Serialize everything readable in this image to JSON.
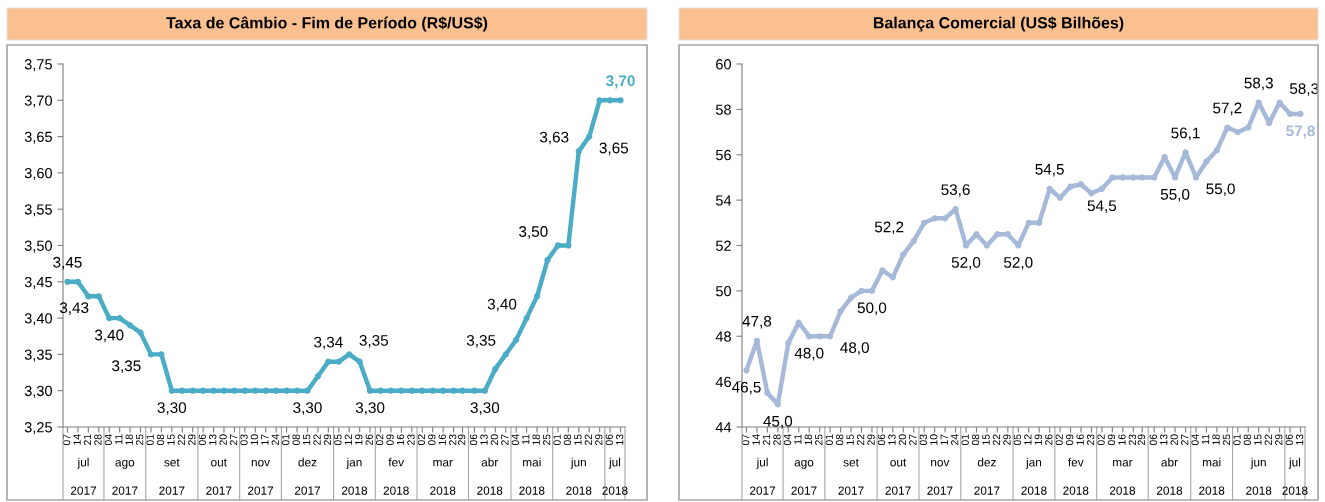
{
  "chart_data": [
    {
      "type": "line",
      "title": "Taxa de Câmbio - Fim de Período (R$/US$)",
      "x": [
        "2017-07-07",
        "2017-07-14",
        "2017-07-21",
        "2017-07-28",
        "2017-08-04",
        "2017-08-11",
        "2017-08-18",
        "2017-08-25",
        "2017-09-01",
        "2017-09-08",
        "2017-09-15",
        "2017-09-22",
        "2017-09-29",
        "2017-10-06",
        "2017-10-13",
        "2017-10-20",
        "2017-10-27",
        "2017-11-03",
        "2017-11-10",
        "2017-11-17",
        "2017-11-24",
        "2017-12-01",
        "2017-12-08",
        "2017-12-15",
        "2017-12-22",
        "2017-12-29",
        "2018-01-05",
        "2018-01-12",
        "2018-01-19",
        "2018-01-26",
        "2018-02-02",
        "2018-02-09",
        "2018-02-16",
        "2018-02-23",
        "2018-03-02",
        "2018-03-09",
        "2018-03-16",
        "2018-03-23",
        "2018-03-29",
        "2018-04-06",
        "2018-04-13",
        "2018-04-20",
        "2018-04-27",
        "2018-05-04",
        "2018-05-11",
        "2018-05-18",
        "2018-05-25",
        "2018-06-01",
        "2018-06-08",
        "2018-06-15",
        "2018-06-22",
        "2018-06-29",
        "2018-07-06",
        "2018-07-13"
      ],
      "xlim": [
        "2017-07-04",
        "2018-07-16"
      ],
      "xticks": [
        {
          "value": "2017-07-07",
          "label": "07"
        },
        {
          "value": "2017-07-14",
          "label": "14"
        },
        {
          "value": "2017-07-21",
          "label": "21"
        },
        {
          "value": "2017-07-28",
          "label": "28"
        },
        {
          "value": "2017-08-04",
          "label": "04"
        },
        {
          "value": "2017-08-11",
          "label": "11"
        },
        {
          "value": "2017-08-18",
          "label": "18"
        },
        {
          "value": "2017-08-25",
          "label": "25"
        },
        {
          "value": "2017-09-01",
          "label": "01"
        },
        {
          "value": "2017-09-08",
          "label": "08"
        },
        {
          "value": "2017-09-15",
          "label": "15"
        },
        {
          "value": "2017-09-22",
          "label": "22"
        },
        {
          "value": "2017-09-29",
          "label": "29"
        },
        {
          "value": "2017-10-06",
          "label": "06"
        },
        {
          "value": "2017-10-13",
          "label": "13"
        },
        {
          "value": "2017-10-20",
          "label": "20"
        },
        {
          "value": "2017-10-27",
          "label": "27"
        },
        {
          "value": "2017-11-03",
          "label": "03"
        },
        {
          "value": "2017-11-10",
          "label": "10"
        },
        {
          "value": "2017-11-17",
          "label": "17"
        },
        {
          "value": "2017-11-24",
          "label": "24"
        },
        {
          "value": "2017-12-01",
          "label": "01"
        },
        {
          "value": "2017-12-08",
          "label": "08"
        },
        {
          "value": "2017-12-15",
          "label": "15"
        },
        {
          "value": "2017-12-22",
          "label": "22"
        },
        {
          "value": "2017-12-29",
          "label": "29"
        },
        {
          "value": "2018-01-05",
          "label": "05"
        },
        {
          "value": "2018-01-12",
          "label": "12"
        },
        {
          "value": "2018-01-19",
          "label": "19"
        },
        {
          "value": "2018-01-26",
          "label": "26"
        },
        {
          "value": "2018-02-02",
          "label": "02"
        },
        {
          "value": "2018-02-09",
          "label": "09"
        },
        {
          "value": "2018-02-16",
          "label": "16"
        },
        {
          "value": "2018-02-23",
          "label": "23"
        },
        {
          "value": "2018-03-02",
          "label": "02"
        },
        {
          "value": "2018-03-09",
          "label": "09"
        },
        {
          "value": "2018-03-16",
          "label": "16"
        },
        {
          "value": "2018-03-23",
          "label": "23"
        },
        {
          "value": "2018-03-29",
          "label": "29"
        },
        {
          "value": "2018-04-06",
          "label": "06"
        },
        {
          "value": "2018-04-13",
          "label": "13"
        },
        {
          "value": "2018-04-20",
          "label": "20"
        },
        {
          "value": "2018-04-27",
          "label": "27"
        },
        {
          "value": "2018-05-04",
          "label": "04"
        },
        {
          "value": "2018-05-11",
          "label": "11"
        },
        {
          "value": "2018-05-18",
          "label": "18"
        },
        {
          "value": "2018-05-25",
          "label": "25"
        },
        {
          "value": "2018-06-01",
          "label": "01"
        },
        {
          "value": "2018-06-08",
          "label": "08"
        },
        {
          "value": "2018-06-15",
          "label": "15"
        },
        {
          "value": "2018-06-22",
          "label": "22"
        },
        {
          "value": "2018-06-29",
          "label": "29"
        },
        {
          "value": "2018-07-06",
          "label": "06"
        },
        {
          "value": "2018-07-13",
          "label": "13"
        }
      ],
      "ylim": [
        3.25,
        3.75
      ],
      "yticks": [
        {
          "value": 3.25,
          "label": "3,25"
        },
        {
          "value": 3.3,
          "label": "3,30"
        },
        {
          "value": 3.35,
          "label": "3,35"
        },
        {
          "value": 3.4,
          "label": "3,40"
        },
        {
          "value": 3.45,
          "label": "3,45"
        },
        {
          "value": 3.5,
          "label": "3,50"
        },
        {
          "value": 3.55,
          "label": "3,55"
        },
        {
          "value": 3.6,
          "label": "3,60"
        },
        {
          "value": 3.65,
          "label": "3,65"
        },
        {
          "value": 3.7,
          "label": "3,70"
        },
        {
          "value": 3.75,
          "label": "3,75"
        }
      ],
      "marker": "circle",
      "line_style": "solid",
      "series": [
        {
          "color": "#4bacc6",
          "values": [
            3.45,
            3.45,
            3.43,
            3.43,
            3.4,
            3.4,
            3.39,
            3.38,
            3.35,
            3.35,
            3.3,
            3.3,
            3.3,
            3.3,
            3.3,
            3.3,
            3.3,
            3.3,
            3.3,
            3.3,
            3.3,
            3.3,
            3.3,
            3.3,
            3.32,
            3.34,
            3.34,
            3.35,
            3.34,
            3.3,
            3.3,
            3.3,
            3.3,
            3.3,
            3.3,
            3.3,
            3.3,
            3.3,
            3.3,
            3.3,
            3.3,
            3.33,
            3.35,
            3.37,
            3.4,
            3.43,
            3.48,
            3.5,
            3.5,
            3.63,
            3.65,
            3.7,
            3.7,
            3.7
          ],
          "value_labels": [
            "3,45",
            null,
            null,
            "3,43",
            "3,40",
            null,
            null,
            null,
            "3,35",
            null,
            "3,30",
            null,
            null,
            null,
            null,
            null,
            null,
            null,
            null,
            null,
            null,
            null,
            null,
            "3,30",
            null,
            "3,34",
            null,
            "3,35",
            null,
            "3,30",
            null,
            null,
            null,
            null,
            null,
            null,
            null,
            null,
            null,
            null,
            "3,30",
            null,
            "3,35",
            null,
            "3,40",
            null,
            null,
            "3,50",
            null,
            "3,63",
            "3,65",
            null,
            null,
            "3,70"
          ]
        }
      ],
      "annotations": [
        "jul\n2017",
        "ago\n2017",
        "set\n2017",
        "out\n2017",
        "nov\n2017",
        "dez\n2017",
        "jan\n2018",
        "fev\n2018",
        "mar\n2018",
        "abr\n2018",
        "mai\n2018",
        "jun\n2018",
        "jul\n2018"
      ]
    },
    {
      "type": "line",
      "title": "Balança Comercial (US$ Bilhões)",
      "x": [
        "2017-07-07",
        "2017-07-14",
        "2017-07-21",
        "2017-07-28",
        "2017-08-04",
        "2017-08-11",
        "2017-08-18",
        "2017-08-25",
        "2017-09-01",
        "2017-09-08",
        "2017-09-15",
        "2017-09-22",
        "2017-09-29",
        "2017-10-06",
        "2017-10-13",
        "2017-10-20",
        "2017-10-27",
        "2017-11-03",
        "2017-11-10",
        "2017-11-17",
        "2017-11-24",
        "2017-12-01",
        "2017-12-08",
        "2017-12-15",
        "2017-12-22",
        "2017-12-29",
        "2018-01-05",
        "2018-01-12",
        "2018-01-19",
        "2018-01-26",
        "2018-02-02",
        "2018-02-09",
        "2018-02-16",
        "2018-02-23",
        "2018-03-02",
        "2018-03-09",
        "2018-03-16",
        "2018-03-23",
        "2018-03-29",
        "2018-04-06",
        "2018-04-13",
        "2018-04-20",
        "2018-04-27",
        "2018-05-04",
        "2018-05-11",
        "2018-05-18",
        "2018-05-25",
        "2018-06-01",
        "2018-06-08",
        "2018-06-15",
        "2018-06-22",
        "2018-06-29",
        "2018-07-06",
        "2018-07-13"
      ],
      "xlim": [
        "2017-07-04",
        "2018-07-16"
      ],
      "xticks": [
        {
          "value": "2017-07-07",
          "label": "07"
        },
        {
          "value": "2017-07-14",
          "label": "14"
        },
        {
          "value": "2017-07-21",
          "label": "21"
        },
        {
          "value": "2017-07-28",
          "label": "28"
        },
        {
          "value": "2017-08-04",
          "label": "04"
        },
        {
          "value": "2017-08-11",
          "label": "11"
        },
        {
          "value": "2017-08-18",
          "label": "18"
        },
        {
          "value": "2017-08-25",
          "label": "25"
        },
        {
          "value": "2017-09-01",
          "label": "01"
        },
        {
          "value": "2017-09-08",
          "label": "08"
        },
        {
          "value": "2017-09-15",
          "label": "15"
        },
        {
          "value": "2017-09-22",
          "label": "22"
        },
        {
          "value": "2017-09-29",
          "label": "29"
        },
        {
          "value": "2017-10-06",
          "label": "06"
        },
        {
          "value": "2017-10-13",
          "label": "13"
        },
        {
          "value": "2017-10-20",
          "label": "20"
        },
        {
          "value": "2017-10-27",
          "label": "27"
        },
        {
          "value": "2017-11-03",
          "label": "03"
        },
        {
          "value": "2017-11-10",
          "label": "10"
        },
        {
          "value": "2017-11-17",
          "label": "17"
        },
        {
          "value": "2017-11-24",
          "label": "24"
        },
        {
          "value": "2017-12-01",
          "label": "01"
        },
        {
          "value": "2017-12-08",
          "label": "08"
        },
        {
          "value": "2017-12-15",
          "label": "15"
        },
        {
          "value": "2017-12-22",
          "label": "22"
        },
        {
          "value": "2017-12-29",
          "label": "29"
        },
        {
          "value": "2018-01-05",
          "label": "05"
        },
        {
          "value": "2018-01-12",
          "label": "12"
        },
        {
          "value": "2018-01-19",
          "label": "19"
        },
        {
          "value": "2018-01-26",
          "label": "26"
        },
        {
          "value": "2018-02-02",
          "label": "02"
        },
        {
          "value": "2018-02-09",
          "label": "09"
        },
        {
          "value": "2018-02-16",
          "label": "16"
        },
        {
          "value": "2018-02-23",
          "label": "23"
        },
        {
          "value": "2018-03-02",
          "label": "02"
        },
        {
          "value": "2018-03-09",
          "label": "09"
        },
        {
          "value": "2018-03-16",
          "label": "16"
        },
        {
          "value": "2018-03-23",
          "label": "23"
        },
        {
          "value": "2018-03-29",
          "label": "29"
        },
        {
          "value": "2018-04-06",
          "label": "06"
        },
        {
          "value": "2018-04-13",
          "label": "13"
        },
        {
          "value": "2018-04-20",
          "label": "20"
        },
        {
          "value": "2018-04-27",
          "label": "27"
        },
        {
          "value": "2018-05-04",
          "label": "04"
        },
        {
          "value": "2018-05-11",
          "label": "11"
        },
        {
          "value": "2018-05-18",
          "label": "18"
        },
        {
          "value": "2018-05-25",
          "label": "25"
        },
        {
          "value": "2018-06-01",
          "label": "01"
        },
        {
          "value": "2018-06-08",
          "label": "08"
        },
        {
          "value": "2018-06-15",
          "label": "15"
        },
        {
          "value": "2018-06-22",
          "label": "22"
        },
        {
          "value": "2018-06-29",
          "label": "29"
        },
        {
          "value": "2018-07-06",
          "label": "06"
        },
        {
          "value": "2018-07-13",
          "label": "13"
        }
      ],
      "ylim": [
        44,
        60
      ],
      "yticks": [
        44,
        46,
        48,
        50,
        52,
        54,
        56,
        58,
        60
      ],
      "marker": "circle",
      "line_style": "solid",
      "series": [
        {
          "color": "#a6b9d9",
          "values": [
            46.5,
            47.8,
            45.5,
            45.0,
            47.7,
            48.6,
            48.0,
            48.0,
            48.0,
            49.1,
            49.7,
            50.0,
            50.0,
            50.9,
            50.6,
            51.6,
            52.2,
            53.0,
            53.2,
            53.2,
            53.6,
            52.0,
            52.5,
            52.0,
            52.5,
            52.5,
            52.0,
            53.0,
            53.0,
            54.5,
            54.1,
            54.6,
            54.7,
            54.3,
            54.5,
            55.0,
            55.0,
            55.0,
            55.0,
            55.0,
            55.9,
            55.0,
            56.1,
            55.0,
            55.7,
            56.2,
            57.2,
            57.0,
            57.2,
            58.3,
            57.4,
            58.3,
            57.8,
            57.8
          ],
          "value_labels": [
            "46,5",
            "47,8",
            null,
            "45,0",
            null,
            null,
            "48,0",
            null,
            "48,0",
            null,
            null,
            null,
            "50,0",
            null,
            null,
            null,
            "52,2",
            null,
            null,
            null,
            "53,6",
            "52,0",
            null,
            null,
            null,
            null,
            "52,0",
            null,
            null,
            "54,5",
            null,
            null,
            null,
            null,
            "54,5",
            null,
            null,
            null,
            null,
            null,
            null,
            "55,0",
            "56,1",
            "55,0",
            null,
            null,
            "57,2",
            null,
            null,
            "58,3",
            null,
            "58,3",
            null,
            "57,8"
          ]
        }
      ],
      "annotations": [
        "jul\n2017",
        "ago\n2017",
        "set\n2017",
        "out\n2017",
        "nov\n2017",
        "dez\n2017",
        "jan\n2018",
        "fev\n2018",
        "mar\n2018",
        "abr\n2018",
        "mai\n2018",
        "jun\n2018",
        "jul\n2018"
      ]
    }
  ]
}
